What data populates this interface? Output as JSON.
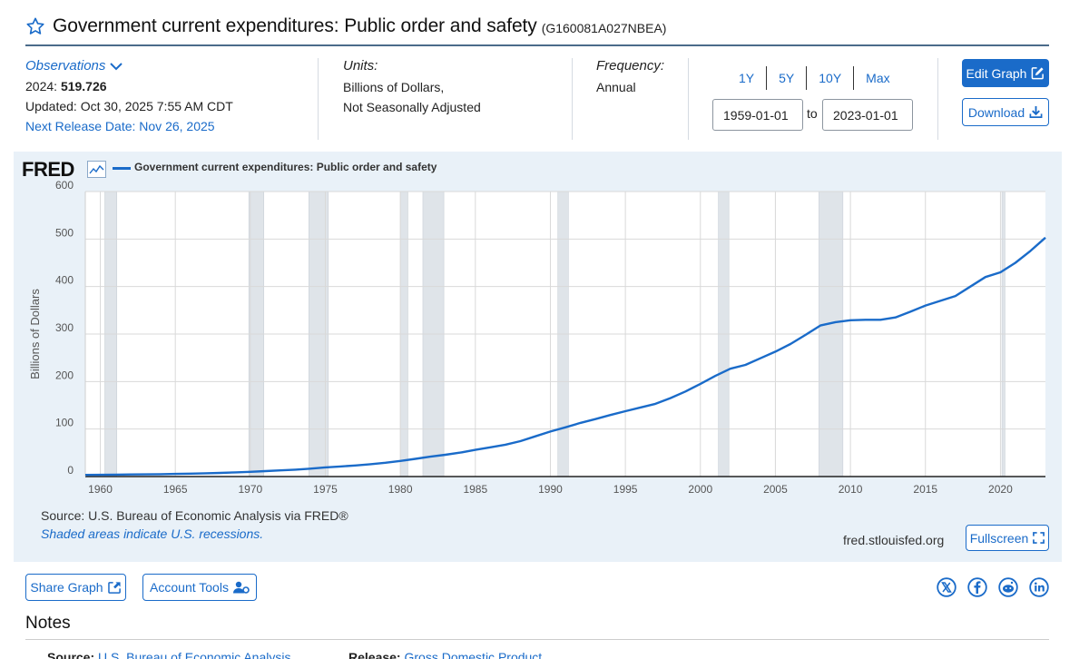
{
  "header": {
    "title": "Government current expenditures: Public order and safety",
    "series_id": "(G160081A027NBEA)"
  },
  "observations": {
    "link_label": "Observations",
    "latest_label": "2024:",
    "latest_value": "519.726",
    "updated": "Updated: Oct 30, 2025 7:55 AM CDT",
    "next_release": "Next Release Date: Nov 26, 2025"
  },
  "units": {
    "heading": "Units:",
    "line1": "Billions of Dollars,",
    "line2": "Not Seasonally Adjusted"
  },
  "frequency": {
    "heading": "Frequency:",
    "value": "Annual"
  },
  "range": {
    "buttons": [
      "1Y",
      "5Y",
      "10Y",
      "Max"
    ],
    "start": "1959-01-01",
    "to_label": "to",
    "end": "2023-01-01"
  },
  "actions": {
    "edit_graph": "Edit Graph",
    "download": "Download",
    "fullscreen": "Fullscreen",
    "share_graph": "Share Graph",
    "account_tools": "Account Tools"
  },
  "graph": {
    "logo": "FRED",
    "source": "Source: U.S. Bureau of Economic Analysis via FRED®",
    "shaded_note": "Shaded areas indicate U.S. recessions.",
    "url": "fred.stlouisfed.org"
  },
  "notes": {
    "heading": "Notes",
    "source_label": "Source:",
    "source_link": "U.S. Bureau of Economic Analysis",
    "release_label": "Release:",
    "release_link": "Gross Domestic Product"
  },
  "colors": {
    "accent": "#1a6bc9",
    "panel": "#e9f1f8",
    "recession": "#dfe4e9"
  },
  "chart_data": {
    "type": "line",
    "title": "Government current expenditures: Public order and safety",
    "ylabel": "Billions of Dollars",
    "xlabel": "",
    "xlim": [
      1959,
      1959.0,
      2023
    ],
    "ylim": [
      0,
      600
    ],
    "yticks": [
      0,
      100,
      200,
      300,
      400,
      500,
      600
    ],
    "xticks": [
      1960,
      1965,
      1970,
      1975,
      1980,
      1985,
      1990,
      1995,
      2000,
      2005,
      2010,
      2015,
      2020
    ],
    "recessions": [
      [
        1960.3,
        1961.1
      ],
      [
        1969.9,
        1970.9
      ],
      [
        1973.9,
        1975.2
      ],
      [
        1980.0,
        1980.5
      ],
      [
        1981.5,
        1982.9
      ],
      [
        1990.5,
        1991.2
      ],
      [
        2001.2,
        2001.9
      ],
      [
        2007.9,
        2009.5
      ],
      [
        2020.1,
        2020.3
      ]
    ],
    "series": [
      {
        "name": "Government current expenditures: Public order and safety",
        "x": [
          1959,
          1960,
          1961,
          1962,
          1963,
          1964,
          1965,
          1966,
          1967,
          1968,
          1969,
          1970,
          1971,
          1972,
          1973,
          1974,
          1975,
          1976,
          1977,
          1978,
          1979,
          1980,
          1981,
          1982,
          1983,
          1984,
          1985,
          1986,
          1987,
          1988,
          1989,
          1990,
          1991,
          1992,
          1993,
          1994,
          1995,
          1996,
          1997,
          1998,
          1999,
          2000,
          2001,
          2002,
          2003,
          2004,
          2005,
          2006,
          2007,
          2008,
          2009,
          2010,
          2011,
          2012,
          2013,
          2014,
          2015,
          2016,
          2017,
          2018,
          2019,
          2020,
          2021,
          2022,
          2023
        ],
        "values": [
          3.4,
          3.7,
          4.0,
          4.3,
          4.6,
          5.0,
          5.5,
          6.1,
          6.8,
          7.7,
          8.7,
          10.0,
          11.5,
          13.0,
          14.6,
          16.7,
          19.3,
          21.3,
          23.4,
          26.0,
          29.0,
          32.8,
          37.2,
          41.9,
          45.9,
          50.5,
          56.2,
          61.6,
          67.0,
          74.5,
          84.6,
          94.7,
          103.5,
          113.0,
          121.0,
          129.5,
          137.5,
          145.5,
          153.0,
          165.0,
          179.0,
          195.0,
          212.0,
          227.0,
          235.0,
          249.0,
          263.0,
          279.0,
          298.0,
          318.0,
          325.0,
          329.0,
          330.0,
          330.0,
          335.0,
          347.0,
          360.0,
          370.0,
          380.0,
          400.0,
          420.0,
          430.0,
          450.0,
          475.0,
          503.0
        ]
      }
    ]
  }
}
